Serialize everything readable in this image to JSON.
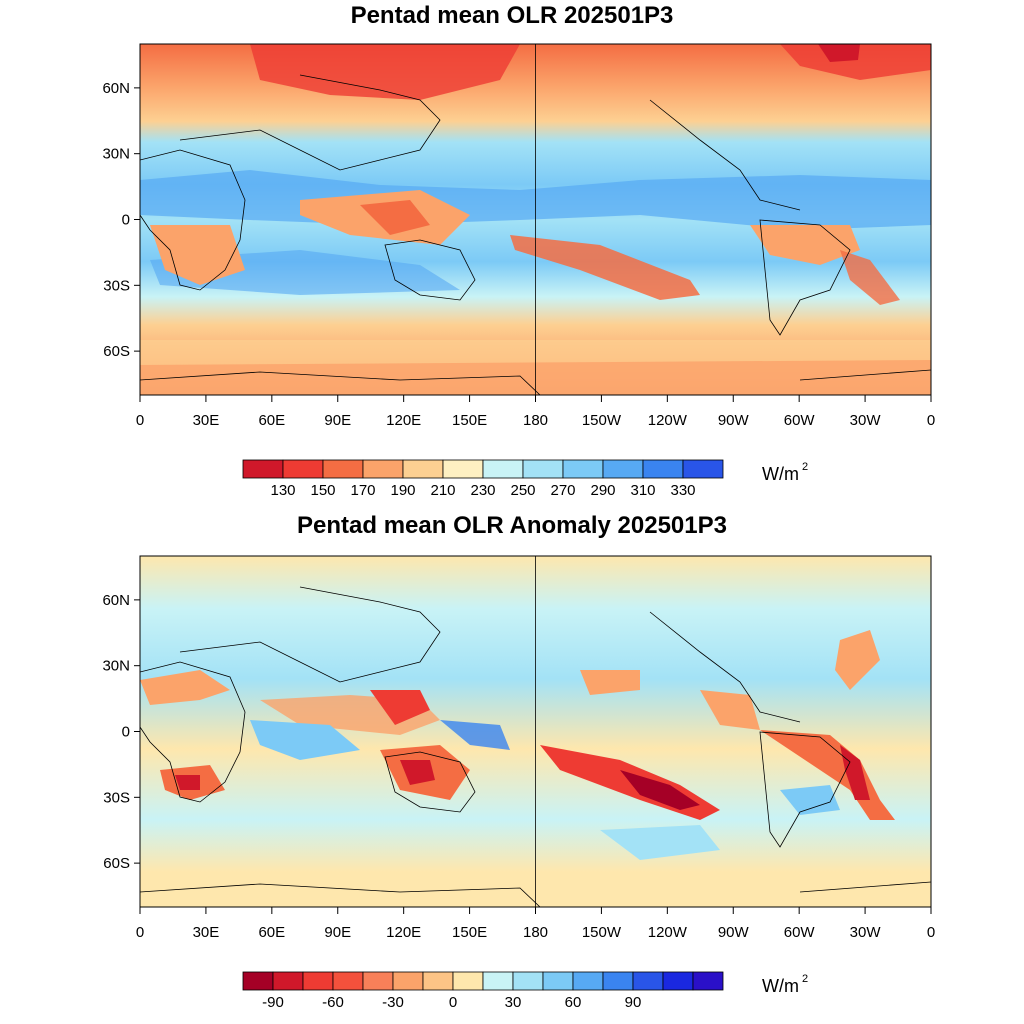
{
  "panels": [
    {
      "title": "Pentad mean OLR 202501P3",
      "lat_labels": [
        "60N",
        "30N",
        "0",
        "30S",
        "60S"
      ],
      "lon_labels": [
        "0",
        "30E",
        "60E",
        "90E",
        "120E",
        "150E",
        "180",
        "150W",
        "120W",
        "90W",
        "60W",
        "30W",
        "0"
      ],
      "colorbar": {
        "colors": [
          "#d0182a",
          "#ee3b33",
          "#f46d43",
          "#fba36a",
          "#fdd092",
          "#fef0c2",
          "#c9f3f6",
          "#a3e2f6",
          "#7ccaf6",
          "#57a9f3",
          "#3a84f0",
          "#2955e8"
        ],
        "labels": [
          "130",
          "150",
          "170",
          "190",
          "210",
          "230",
          "250",
          "270",
          "290",
          "310",
          "330"
        ],
        "unit": "W/m",
        "unit_sup": "2"
      }
    },
    {
      "title": "Pentad mean OLR Anomaly 202501P3",
      "lat_labels": [
        "60N",
        "30N",
        "0",
        "30S",
        "60S"
      ],
      "lon_labels": [
        "0",
        "30E",
        "60E",
        "90E",
        "120E",
        "150E",
        "180",
        "150W",
        "120W",
        "90W",
        "60W",
        "30W",
        "0"
      ],
      "colorbar": {
        "colors": [
          "#a50026",
          "#d0182a",
          "#ee3b33",
          "#f4513c",
          "#f88059",
          "#fba36a",
          "#fdc486",
          "#fee7ad",
          "#c9f3f6",
          "#a3e2f6",
          "#7ccaf6",
          "#57a9f3",
          "#3a84f0",
          "#2955e8",
          "#1a28e0",
          "#2a10c8"
        ],
        "labels": [
          "-90",
          "-60",
          "-30",
          "0",
          "30",
          "60",
          "90"
        ],
        "label_slots": [
          1,
          3,
          5,
          7,
          9,
          11,
          13
        ],
        "unit": "W/m",
        "unit_sup": "2"
      }
    }
  ]
}
